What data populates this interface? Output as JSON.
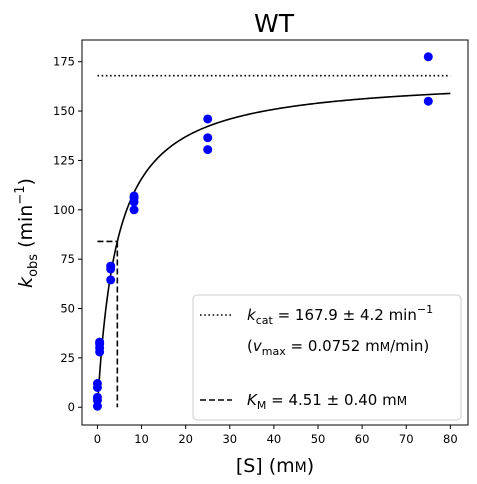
{
  "chart_data": {
    "type": "scatter",
    "title": "WT",
    "xlabel": "[S] (mM)",
    "ylabel": "k_obs (min^-1)",
    "xlim": [
      -3.5,
      84
    ],
    "ylim": [
      -9,
      186
    ],
    "xticks": [
      0,
      10,
      20,
      30,
      40,
      50,
      60,
      70,
      80
    ],
    "yticks": [
      0,
      25,
      50,
      75,
      100,
      125,
      150,
      175
    ],
    "grid": false,
    "legend_position": "lower-right",
    "series": [
      {
        "name": "data",
        "kind": "points",
        "color": "#0000ff",
        "x": [
          0,
          0,
          0,
          0,
          0,
          0.5,
          0.5,
          0.5,
          0.5,
          3,
          3,
          3,
          8.3,
          8.3,
          8.3,
          8.3,
          25,
          25,
          25,
          75,
          75
        ],
        "y": [
          0.5,
          3.5,
          5,
          10,
          12,
          28,
          30,
          32,
          33,
          64.5,
          70,
          71.5,
          100,
          104,
          106,
          107,
          130.5,
          136.5,
          146,
          155,
          177.5
        ]
      },
      {
        "name": "fit",
        "kind": "michaelis-menten",
        "color": "#000000",
        "kcat": 167.9,
        "km": 4.51,
        "x_range": [
          0,
          80
        ]
      },
      {
        "name": "kcat",
        "kind": "hline",
        "style": "dotted",
        "color": "#000000",
        "y": 167.9,
        "x_range": [
          0,
          80
        ]
      },
      {
        "name": "KM",
        "kind": "km-marker",
        "style": "dashed",
        "color": "#000000",
        "x": 4.51,
        "y": 83.95,
        "x_start": 0
      }
    ],
    "legend": {
      "kcat_label": "kcat = 167.9 ± 4.2 min⁻¹",
      "vmax_label": "(vmax = 0.0752 mM/min)",
      "km_label": "KM = 4.51 ± 0.40 mM"
    }
  }
}
